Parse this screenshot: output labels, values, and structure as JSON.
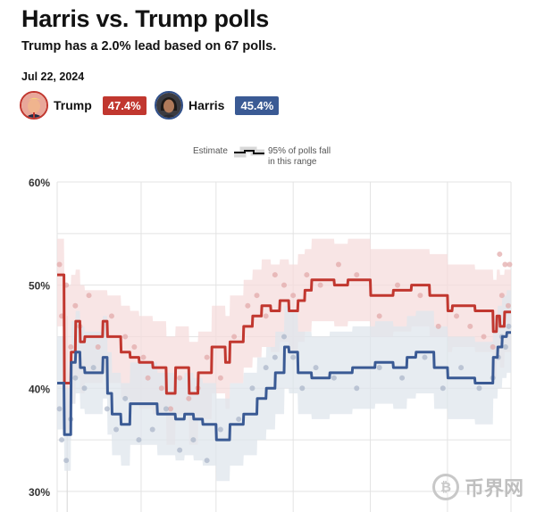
{
  "header": {
    "title": "Harris vs. Trump polls",
    "subtitle": "Trump has a 2.0% lead based on 67 polls.",
    "date": "Jul 22, 2024"
  },
  "candidates": [
    {
      "name": "Trump",
      "value": "47.4%",
      "color": "#c1372f"
    },
    {
      "name": "Harris",
      "value": "45.4%",
      "color": "#3a5a94"
    }
  ],
  "legend": {
    "estimate_label": "Estimate",
    "range_label_line1": "95% of polls fall",
    "range_label_line2": "in this range"
  },
  "watermark": {
    "coin_glyph": "₿",
    "text": "币界网"
  },
  "chart_data": {
    "type": "line",
    "title": "Harris vs. Trump polls",
    "y_ticks": [
      "60%",
      "50%",
      "40%",
      "30%"
    ],
    "ylim": [
      28,
      60
    ],
    "xlim": [
      0,
      100
    ],
    "series": [
      {
        "name": "Trump",
        "color": "#c1372f",
        "band_color": "#f6dcdc",
        "x": [
          0,
          1.5,
          1.6,
          3,
          3.1,
          4,
          4.1,
          5,
          5.1,
          6,
          6.1,
          10,
          10.1,
          11,
          11.1,
          14,
          14.1,
          16,
          16.1,
          18,
          18.1,
          21,
          21.1,
          24,
          24.1,
          26,
          26.1,
          29,
          29.1,
          31,
          31.1,
          34,
          34.1,
          37,
          37.1,
          38,
          38.1,
          41,
          41.1,
          43,
          43.1,
          45,
          45.1,
          47,
          47.1,
          49,
          49.1,
          51,
          51.1,
          53,
          53.1,
          54.5,
          54.6,
          56,
          56.1,
          61,
          61.1,
          64,
          64.1,
          69,
          69.1,
          74,
          74.1,
          78,
          78.1,
          82,
          82.1,
          86,
          86.1,
          87,
          87.1,
          92,
          92.1,
          96,
          96.1,
          96.8,
          96.9,
          97.5,
          97.6,
          98.5,
          98.6,
          100
        ],
        "y": [
          51,
          51,
          40.5,
          40.5,
          43.5,
          43.5,
          46.5,
          46.5,
          44.5,
          44.5,
          45,
          45,
          46.5,
          46.5,
          45,
          45,
          43.5,
          43.5,
          43,
          43,
          42.5,
          42.5,
          42,
          42,
          39.5,
          39.5,
          42,
          42,
          39.5,
          39.5,
          41.5,
          41.5,
          44,
          44,
          42.5,
          42.5,
          44.5,
          44.5,
          46,
          46,
          47,
          47,
          48,
          48,
          47.5,
          47.5,
          48.5,
          48.5,
          47.5,
          47.5,
          48.5,
          48.5,
          49.5,
          49.5,
          50.5,
          50.5,
          50,
          50,
          50.5,
          50.5,
          49,
          49,
          49.5,
          49.5,
          50,
          50,
          49,
          49,
          47.5,
          47.5,
          48,
          48,
          47.5,
          47.5,
          45.5,
          45.5,
          47,
          47,
          46,
          46,
          47.4,
          47.4
        ],
        "band_upper": [
          54.5,
          54.5,
          50,
          50,
          51,
          51,
          51.5,
          51.5,
          50,
          50,
          49.5,
          49.5,
          49.5,
          49.5,
          49,
          49,
          48,
          48,
          47.5,
          47.5,
          47,
          47,
          46.5,
          46.5,
          45,
          45,
          46,
          46,
          44.5,
          44.5,
          45.5,
          45.5,
          48,
          48,
          47,
          47,
          49,
          49,
          50.5,
          50.5,
          51.5,
          51.5,
          52.5,
          52.5,
          52,
          52,
          52.5,
          52.5,
          52,
          52,
          53,
          53,
          53.5,
          53.5,
          54.5,
          54.5,
          54,
          54,
          54.5,
          54.5,
          53.5,
          53.5,
          53.5,
          53.5,
          53.5,
          53.5,
          53,
          53,
          52,
          52,
          52,
          52,
          51.5,
          51.5,
          50.5,
          50.5,
          51.5,
          51.5,
          51,
          51,
          51.5,
          51.5
        ],
        "band_lower": [
          46,
          46,
          36,
          36,
          38.5,
          38.5,
          41,
          41,
          39.5,
          39.5,
          40.5,
          40.5,
          41.5,
          41.5,
          40.5,
          40.5,
          39,
          39,
          38.5,
          38.5,
          38,
          38,
          37.5,
          37.5,
          34.5,
          34.5,
          37.5,
          37.5,
          34.5,
          34.5,
          37,
          37,
          39.5,
          39.5,
          38,
          38,
          40.5,
          40.5,
          42,
          42,
          43,
          43,
          44,
          44,
          43.5,
          43.5,
          44.5,
          44.5,
          43.5,
          43.5,
          44.5,
          44.5,
          45.5,
          45.5,
          46.5,
          46.5,
          46,
          46,
          46.5,
          46.5,
          45,
          45,
          45.5,
          45.5,
          46,
          46,
          45,
          45,
          43.5,
          43.5,
          44,
          44,
          43.5,
          43.5,
          41,
          41,
          43,
          43,
          42,
          42,
          43.5,
          43.5
        ]
      },
      {
        "name": "Harris",
        "color": "#3a5a94",
        "band_color": "#dfe5ec",
        "x": [
          0,
          1.5,
          1.6,
          3,
          3.1,
          4,
          4.1,
          5,
          5.1,
          6,
          6.1,
          10,
          10.1,
          11,
          11.1,
          12,
          12.1,
          14,
          14.1,
          16,
          16.1,
          22,
          22.1,
          26,
          26.1,
          28,
          28.1,
          30,
          30.1,
          32,
          32.1,
          35,
          35.1,
          38,
          38.1,
          41,
          41.1,
          44,
          44.1,
          46,
          46.1,
          48,
          48.1,
          50,
          50.1,
          51,
          51.1,
          53,
          53.1,
          56,
          56.1,
          60,
          60.1,
          65,
          65.1,
          70,
          70.1,
          74,
          74.1,
          77,
          77.1,
          79,
          79.1,
          83,
          83.1,
          86,
          86.1,
          92,
          92.1,
          96,
          96.1,
          97,
          97.1,
          98,
          98.1,
          99,
          99.1,
          100
        ],
        "y": [
          40.5,
          40.5,
          35.5,
          35.5,
          42.5,
          42.5,
          43.5,
          43.5,
          42,
          42,
          41.5,
          41.5,
          43,
          43,
          39.5,
          39.5,
          37.5,
          37.5,
          36.5,
          36.5,
          38.5,
          38.5,
          37.5,
          37.5,
          37,
          37,
          37.5,
          37.5,
          37,
          37,
          36.5,
          36.5,
          35,
          35,
          36.5,
          36.5,
          37.5,
          37.5,
          39,
          39,
          40,
          40,
          41.5,
          41.5,
          44,
          44,
          43.5,
          43.5,
          41.5,
          41.5,
          41,
          41,
          41.5,
          41.5,
          42,
          42,
          42.5,
          42.5,
          42,
          42,
          43,
          43,
          43.5,
          43.5,
          42,
          42,
          41,
          41,
          40.5,
          40.5,
          43,
          43,
          44,
          44,
          45,
          45,
          45.4,
          45.4
        ],
        "band_upper": [
          45,
          45,
          40,
          40,
          46.5,
          46.5,
          47.5,
          47.5,
          46,
          46,
          45.5,
          45.5,
          47,
          47,
          43.5,
          43.5,
          41.5,
          41.5,
          40.5,
          40.5,
          42.5,
          42.5,
          41.5,
          41.5,
          41,
          41,
          41.5,
          41.5,
          41,
          41,
          40.5,
          40.5,
          39,
          39,
          40.5,
          40.5,
          41.5,
          41.5,
          43,
          43,
          44,
          44,
          45.5,
          45.5,
          48,
          48,
          47.5,
          47.5,
          45.5,
          45.5,
          45,
          45,
          45.5,
          45.5,
          46,
          46,
          46.5,
          46.5,
          46,
          46,
          47,
          47,
          47.5,
          47.5,
          46,
          46,
          45,
          45,
          44.5,
          44.5,
          47,
          47,
          48,
          48,
          49,
          49,
          49.5,
          49.5
        ],
        "band_lower": [
          36,
          36,
          32,
          32,
          38.5,
          38.5,
          39.5,
          39.5,
          38,
          38,
          37.5,
          37.5,
          39,
          39,
          35.5,
          35.5,
          33.5,
          33.5,
          32.5,
          32.5,
          34.5,
          34.5,
          33.5,
          33.5,
          33,
          33,
          33.5,
          33.5,
          33,
          33,
          32.5,
          32.5,
          31,
          31,
          32.5,
          32.5,
          33.5,
          33.5,
          35,
          35,
          36,
          36,
          37.5,
          37.5,
          40,
          40,
          39.5,
          39.5,
          37.5,
          37.5,
          37,
          37,
          37.5,
          37.5,
          38,
          38,
          38.5,
          38.5,
          38,
          38,
          39,
          39,
          39.5,
          39.5,
          38,
          38,
          37,
          37,
          36.5,
          36.5,
          39,
          39,
          40,
          40,
          41,
          41,
          41.5,
          41.5
        ]
      }
    ],
    "polls_trump": [
      [
        0.5,
        52
      ],
      [
        1,
        47
      ],
      [
        2,
        50
      ],
      [
        3,
        44
      ],
      [
        4,
        48
      ],
      [
        5,
        46
      ],
      [
        7,
        49
      ],
      [
        9,
        44
      ],
      [
        12,
        47
      ],
      [
        15,
        45
      ],
      [
        17,
        44
      ],
      [
        19,
        43
      ],
      [
        20,
        41
      ],
      [
        23,
        40
      ],
      [
        25,
        38
      ],
      [
        27,
        41
      ],
      [
        29,
        39
      ],
      [
        31,
        40
      ],
      [
        33,
        43
      ],
      [
        36,
        41
      ],
      [
        39,
        45
      ],
      [
        42,
        48
      ],
      [
        44,
        49
      ],
      [
        46,
        47
      ],
      [
        48,
        51
      ],
      [
        50,
        50
      ],
      [
        52,
        49
      ],
      [
        55,
        51
      ],
      [
        58,
        50
      ],
      [
        62,
        52
      ],
      [
        66,
        51
      ],
      [
        71,
        47
      ],
      [
        75,
        50
      ],
      [
        80,
        49
      ],
      [
        84,
        46
      ],
      [
        88,
        47
      ],
      [
        91,
        46
      ],
      [
        94,
        45
      ],
      [
        96,
        44
      ],
      [
        97.5,
        53
      ],
      [
        98,
        49
      ],
      [
        98.7,
        52
      ],
      [
        99.4,
        48
      ],
      [
        99.7,
        52
      ]
    ],
    "polls_harris": [
      [
        0.5,
        38
      ],
      [
        1,
        35
      ],
      [
        2,
        33
      ],
      [
        3,
        37
      ],
      [
        4,
        41
      ],
      [
        6,
        40
      ],
      [
        8,
        42
      ],
      [
        11,
        38
      ],
      [
        13,
        36
      ],
      [
        15,
        39
      ],
      [
        18,
        35
      ],
      [
        21,
        36
      ],
      [
        24,
        38
      ],
      [
        27,
        34
      ],
      [
        30,
        35
      ],
      [
        33,
        33
      ],
      [
        36,
        36
      ],
      [
        40,
        37
      ],
      [
        43,
        40
      ],
      [
        46,
        42
      ],
      [
        48,
        43
      ],
      [
        50,
        45
      ],
      [
        52,
        43
      ],
      [
        54,
        40
      ],
      [
        57,
        42
      ],
      [
        61,
        41
      ],
      [
        66,
        40
      ],
      [
        71,
        42
      ],
      [
        76,
        41
      ],
      [
        81,
        43
      ],
      [
        85,
        40
      ],
      [
        89,
        42
      ],
      [
        93,
        40
      ],
      [
        96,
        41
      ],
      [
        97.2,
        43
      ],
      [
        98,
        45
      ],
      [
        98.8,
        44
      ],
      [
        99.5,
        46
      ]
    ]
  }
}
